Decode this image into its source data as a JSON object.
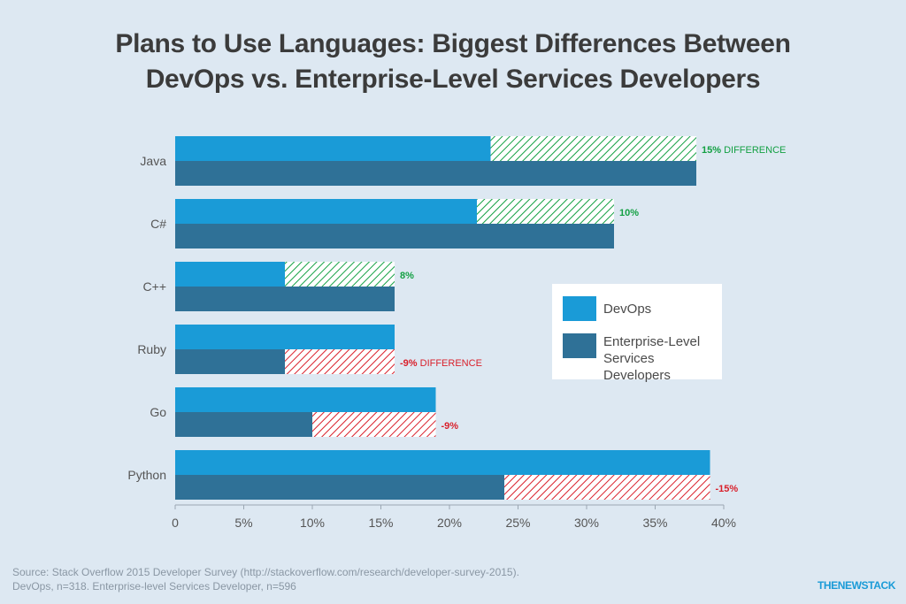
{
  "title_line1": "Plans to Use Languages: Biggest Differences Between",
  "title_line2": "DevOps vs. Enterprise-Level Services Developers",
  "source_line1": "Source: Stack Overflow 2015 Developer Survey (http://stackoverflow.com/research/developer-survey-2015).",
  "source_line2": "DevOps, n=318. Enterprise-level Services Developer, n=596",
  "brand": "THENEWSTACK",
  "legend": {
    "devops": "DevOps",
    "enterprise_line1": "Enterprise-Level",
    "enterprise_line2": "Services Developers"
  },
  "colors": {
    "devops": "#1a9bd7",
    "enterprise": "#2f7197",
    "positive": "#13a043",
    "negative": "#d9202b",
    "axis_text": "#555555"
  },
  "chart_data": {
    "type": "bar",
    "orientation": "horizontal",
    "categories": [
      "Java",
      "C#",
      "C++",
      "Ruby",
      "Go",
      "Python"
    ],
    "series": [
      {
        "name": "DevOps",
        "values": [
          23,
          22,
          8,
          16,
          19,
          39
        ]
      },
      {
        "name": "Enterprise-Level Services Developers",
        "values": [
          38,
          32,
          16,
          8,
          10,
          24
        ]
      }
    ],
    "difference_labels": [
      {
        "category": "Java",
        "value": "15%",
        "suffix": "DIFFERENCE"
      },
      {
        "category": "C#",
        "value": "10%",
        "suffix": ""
      },
      {
        "category": "C++",
        "value": "8%",
        "suffix": ""
      },
      {
        "category": "Ruby",
        "value": "-9%",
        "suffix": "DIFFERENCE"
      },
      {
        "category": "Go",
        "value": "-9%",
        "suffix": ""
      },
      {
        "category": "Python",
        "value": "-15%",
        "suffix": ""
      }
    ],
    "xticks": [
      "0",
      "5%",
      "10%",
      "15%",
      "20%",
      "25%",
      "30%",
      "35%",
      "40%"
    ],
    "xlim": [
      0,
      40
    ],
    "legend_position": "right"
  }
}
